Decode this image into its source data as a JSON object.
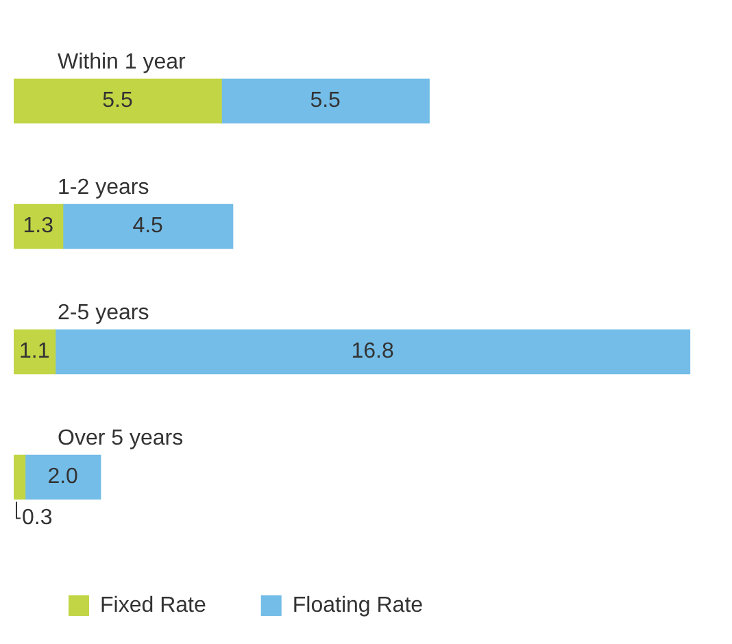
{
  "chart_data": {
    "type": "bar",
    "orientation": "horizontal",
    "stacked": true,
    "legend": "bottom left",
    "categories": [
      "Within 1 year",
      "1-2 years",
      "2-5 years",
      "Over 5 years"
    ],
    "series": [
      {
        "name": "Fixed Rate",
        "color": "#c2d545",
        "values": [
          5.5,
          1.3,
          1.1,
          0.3
        ],
        "value_labels": [
          "5.5",
          "1.3",
          "1.1",
          "0.3"
        ]
      },
      {
        "name": "Floating Rate",
        "color": "#74bde8",
        "values": [
          5.5,
          4.5,
          16.8,
          2.0
        ],
        "value_labels": [
          "5.5",
          "4.5",
          "16.8",
          "2.0"
        ]
      }
    ]
  }
}
